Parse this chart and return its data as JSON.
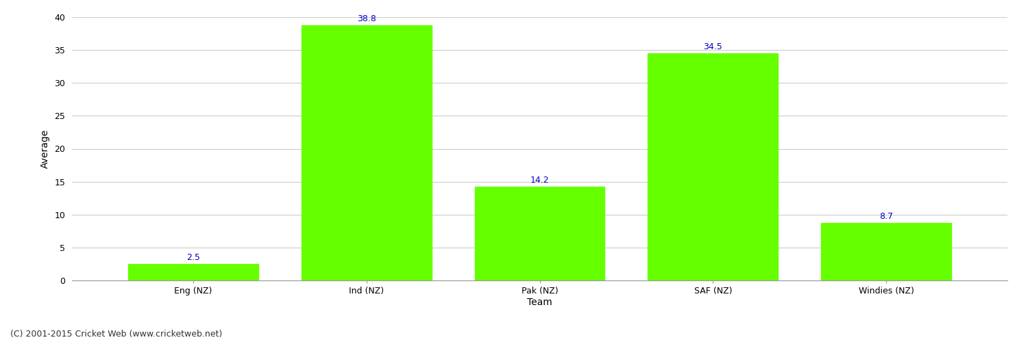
{
  "categories": [
    "Eng (NZ)",
    "Ind (NZ)",
    "Pak (NZ)",
    "SAF (NZ)",
    "Windies (NZ)"
  ],
  "values": [
    2.5,
    38.8,
    14.2,
    34.5,
    8.7
  ],
  "bar_color": "#66ff00",
  "bar_edge_color": "#66ff00",
  "value_label_color": "#0000cc",
  "value_label_fontsize": 9,
  "xlabel": "Team",
  "ylabel": "Average",
  "ylim": [
    0,
    40
  ],
  "yticks": [
    0,
    5,
    10,
    15,
    20,
    25,
    30,
    35,
    40
  ],
  "grid_color": "#cccccc",
  "background_color": "#ffffff",
  "footer_text": "(C) 2001-2015 Cricket Web (www.cricketweb.net)",
  "footer_fontsize": 9,
  "footer_color": "#333333",
  "axis_label_fontsize": 10,
  "tick_fontsize": 9,
  "title_fontsize": 13,
  "bar_width": 0.75
}
